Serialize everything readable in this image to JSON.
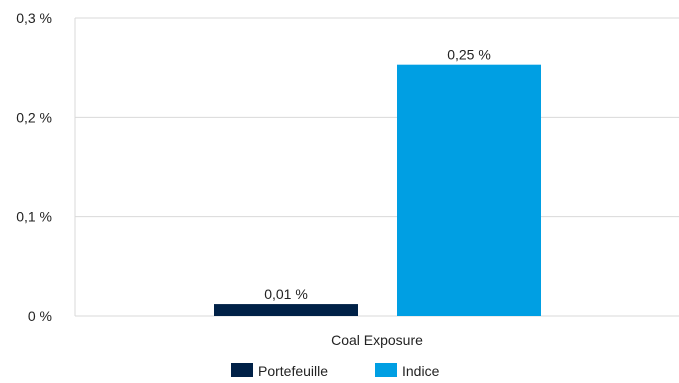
{
  "chart_data": {
    "type": "bar",
    "categories": [
      "Coal Exposure"
    ],
    "series": [
      {
        "name": "Portefeuille",
        "values": [
          0.012
        ],
        "label": "0,01 %",
        "color": "#002147"
      },
      {
        "name": "Indice",
        "values": [
          0.253
        ],
        "label": "0,25 %",
        "color": "#009FE3"
      }
    ],
    "ylim": [
      0,
      0.3
    ],
    "yticks": [
      {
        "value": 0,
        "label": "0 %"
      },
      {
        "value": 0.1,
        "label": "0,1 %"
      },
      {
        "value": 0.2,
        "label": "0,2 %"
      },
      {
        "value": 0.3,
        "label": "0,3 %"
      }
    ],
    "grid": true,
    "legend_position": "bottom",
    "colors": {
      "grid": "#d9d9d9",
      "text": "#222222"
    }
  }
}
